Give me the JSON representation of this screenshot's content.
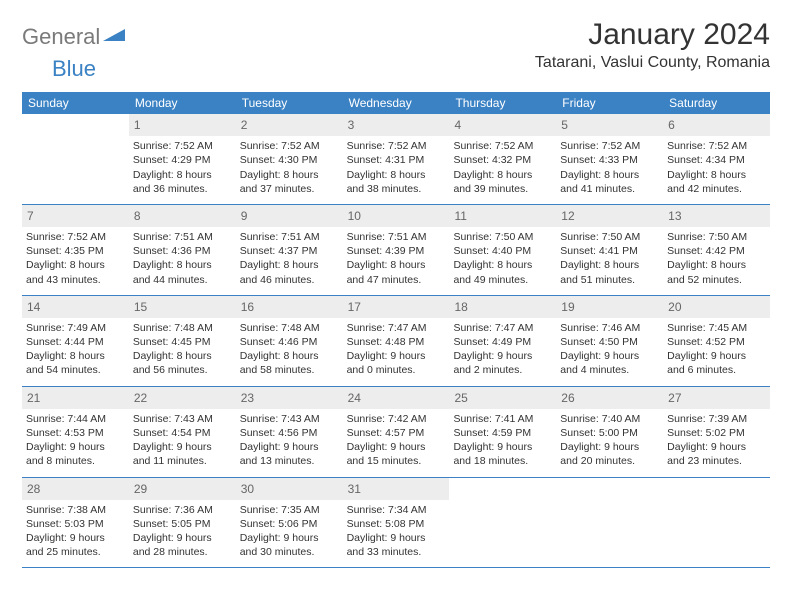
{
  "logo": {
    "text_general": "General",
    "text_blue": "Blue"
  },
  "title": "January 2024",
  "location": "Tatarani, Vaslui County, Romania",
  "colors": {
    "header_bg": "#3b82c4",
    "header_text": "#ffffff",
    "daynum_bg": "#ededed",
    "daynum_text": "#666666",
    "body_text": "#333333",
    "divider": "#3b82c4",
    "logo_gray": "#7a7a7a",
    "logo_blue": "#3b82c4"
  },
  "weekdays": [
    "Sunday",
    "Monday",
    "Tuesday",
    "Wednesday",
    "Thursday",
    "Friday",
    "Saturday"
  ],
  "weeks": [
    [
      {
        "num": "",
        "lines": []
      },
      {
        "num": "1",
        "lines": [
          "Sunrise: 7:52 AM",
          "Sunset: 4:29 PM",
          "Daylight: 8 hours",
          "and 36 minutes."
        ]
      },
      {
        "num": "2",
        "lines": [
          "Sunrise: 7:52 AM",
          "Sunset: 4:30 PM",
          "Daylight: 8 hours",
          "and 37 minutes."
        ]
      },
      {
        "num": "3",
        "lines": [
          "Sunrise: 7:52 AM",
          "Sunset: 4:31 PM",
          "Daylight: 8 hours",
          "and 38 minutes."
        ]
      },
      {
        "num": "4",
        "lines": [
          "Sunrise: 7:52 AM",
          "Sunset: 4:32 PM",
          "Daylight: 8 hours",
          "and 39 minutes."
        ]
      },
      {
        "num": "5",
        "lines": [
          "Sunrise: 7:52 AM",
          "Sunset: 4:33 PM",
          "Daylight: 8 hours",
          "and 41 minutes."
        ]
      },
      {
        "num": "6",
        "lines": [
          "Sunrise: 7:52 AM",
          "Sunset: 4:34 PM",
          "Daylight: 8 hours",
          "and 42 minutes."
        ]
      }
    ],
    [
      {
        "num": "7",
        "lines": [
          "Sunrise: 7:52 AM",
          "Sunset: 4:35 PM",
          "Daylight: 8 hours",
          "and 43 minutes."
        ]
      },
      {
        "num": "8",
        "lines": [
          "Sunrise: 7:51 AM",
          "Sunset: 4:36 PM",
          "Daylight: 8 hours",
          "and 44 minutes."
        ]
      },
      {
        "num": "9",
        "lines": [
          "Sunrise: 7:51 AM",
          "Sunset: 4:37 PM",
          "Daylight: 8 hours",
          "and 46 minutes."
        ]
      },
      {
        "num": "10",
        "lines": [
          "Sunrise: 7:51 AM",
          "Sunset: 4:39 PM",
          "Daylight: 8 hours",
          "and 47 minutes."
        ]
      },
      {
        "num": "11",
        "lines": [
          "Sunrise: 7:50 AM",
          "Sunset: 4:40 PM",
          "Daylight: 8 hours",
          "and 49 minutes."
        ]
      },
      {
        "num": "12",
        "lines": [
          "Sunrise: 7:50 AM",
          "Sunset: 4:41 PM",
          "Daylight: 8 hours",
          "and 51 minutes."
        ]
      },
      {
        "num": "13",
        "lines": [
          "Sunrise: 7:50 AM",
          "Sunset: 4:42 PM",
          "Daylight: 8 hours",
          "and 52 minutes."
        ]
      }
    ],
    [
      {
        "num": "14",
        "lines": [
          "Sunrise: 7:49 AM",
          "Sunset: 4:44 PM",
          "Daylight: 8 hours",
          "and 54 minutes."
        ]
      },
      {
        "num": "15",
        "lines": [
          "Sunrise: 7:48 AM",
          "Sunset: 4:45 PM",
          "Daylight: 8 hours",
          "and 56 minutes."
        ]
      },
      {
        "num": "16",
        "lines": [
          "Sunrise: 7:48 AM",
          "Sunset: 4:46 PM",
          "Daylight: 8 hours",
          "and 58 minutes."
        ]
      },
      {
        "num": "17",
        "lines": [
          "Sunrise: 7:47 AM",
          "Sunset: 4:48 PM",
          "Daylight: 9 hours",
          "and 0 minutes."
        ]
      },
      {
        "num": "18",
        "lines": [
          "Sunrise: 7:47 AM",
          "Sunset: 4:49 PM",
          "Daylight: 9 hours",
          "and 2 minutes."
        ]
      },
      {
        "num": "19",
        "lines": [
          "Sunrise: 7:46 AM",
          "Sunset: 4:50 PM",
          "Daylight: 9 hours",
          "and 4 minutes."
        ]
      },
      {
        "num": "20",
        "lines": [
          "Sunrise: 7:45 AM",
          "Sunset: 4:52 PM",
          "Daylight: 9 hours",
          "and 6 minutes."
        ]
      }
    ],
    [
      {
        "num": "21",
        "lines": [
          "Sunrise: 7:44 AM",
          "Sunset: 4:53 PM",
          "Daylight: 9 hours",
          "and 8 minutes."
        ]
      },
      {
        "num": "22",
        "lines": [
          "Sunrise: 7:43 AM",
          "Sunset: 4:54 PM",
          "Daylight: 9 hours",
          "and 11 minutes."
        ]
      },
      {
        "num": "23",
        "lines": [
          "Sunrise: 7:43 AM",
          "Sunset: 4:56 PM",
          "Daylight: 9 hours",
          "and 13 minutes."
        ]
      },
      {
        "num": "24",
        "lines": [
          "Sunrise: 7:42 AM",
          "Sunset: 4:57 PM",
          "Daylight: 9 hours",
          "and 15 minutes."
        ]
      },
      {
        "num": "25",
        "lines": [
          "Sunrise: 7:41 AM",
          "Sunset: 4:59 PM",
          "Daylight: 9 hours",
          "and 18 minutes."
        ]
      },
      {
        "num": "26",
        "lines": [
          "Sunrise: 7:40 AM",
          "Sunset: 5:00 PM",
          "Daylight: 9 hours",
          "and 20 minutes."
        ]
      },
      {
        "num": "27",
        "lines": [
          "Sunrise: 7:39 AM",
          "Sunset: 5:02 PM",
          "Daylight: 9 hours",
          "and 23 minutes."
        ]
      }
    ],
    [
      {
        "num": "28",
        "lines": [
          "Sunrise: 7:38 AM",
          "Sunset: 5:03 PM",
          "Daylight: 9 hours",
          "and 25 minutes."
        ]
      },
      {
        "num": "29",
        "lines": [
          "Sunrise: 7:36 AM",
          "Sunset: 5:05 PM",
          "Daylight: 9 hours",
          "and 28 minutes."
        ]
      },
      {
        "num": "30",
        "lines": [
          "Sunrise: 7:35 AM",
          "Sunset: 5:06 PM",
          "Daylight: 9 hours",
          "and 30 minutes."
        ]
      },
      {
        "num": "31",
        "lines": [
          "Sunrise: 7:34 AM",
          "Sunset: 5:08 PM",
          "Daylight: 9 hours",
          "and 33 minutes."
        ]
      },
      {
        "num": "",
        "lines": []
      },
      {
        "num": "",
        "lines": []
      },
      {
        "num": "",
        "lines": []
      }
    ]
  ]
}
